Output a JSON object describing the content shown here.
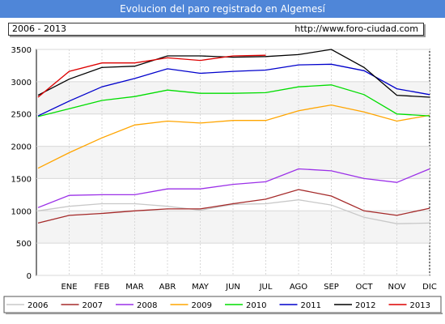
{
  "header": {
    "title": "Evolucion del paro registrado en Algemesí",
    "period": "2006 - 2013",
    "url": "http://www.foro-ciudad.com"
  },
  "chart_data": {
    "type": "line",
    "title": "Evolucion del paro registrado en Algemesí",
    "categories": [
      "",
      "ENE",
      "FEB",
      "MAR",
      "ABR",
      "MAY",
      "JUN",
      "JUL",
      "AGO",
      "SEP",
      "OCT",
      "NOV",
      "DIC"
    ],
    "ylim": [
      0,
      3500
    ],
    "yticks": [
      0,
      500,
      1000,
      1500,
      2000,
      2500,
      3000,
      3500
    ],
    "grid": true,
    "legend_position": "bottom",
    "series": [
      {
        "name": "2006",
        "color": "#c8c8c8",
        "values": [
          1000,
          1070,
          1110,
          1110,
          1070,
          1010,
          1100,
          1110,
          1170,
          1090,
          900,
          800,
          810
        ]
      },
      {
        "name": "2007",
        "color": "#a52a2a",
        "values": [
          810,
          930,
          960,
          1000,
          1030,
          1030,
          1110,
          1180,
          1330,
          1230,
          1000,
          930,
          1040
        ]
      },
      {
        "name": "2008",
        "color": "#9b30e8",
        "values": [
          1050,
          1240,
          1250,
          1250,
          1340,
          1340,
          1410,
          1450,
          1650,
          1620,
          1500,
          1440,
          1650
        ]
      },
      {
        "name": "2009",
        "color": "#ffa500",
        "values": [
          1660,
          1900,
          2130,
          2330,
          2390,
          2360,
          2400,
          2400,
          2550,
          2640,
          2530,
          2390,
          2480
        ]
      },
      {
        "name": "2010",
        "color": "#00dd00",
        "values": [
          2460,
          2580,
          2710,
          2770,
          2870,
          2820,
          2820,
          2830,
          2920,
          2950,
          2800,
          2500,
          2470
        ]
      },
      {
        "name": "2011",
        "color": "#0000cc",
        "values": [
          2470,
          2700,
          2920,
          3050,
          3200,
          3130,
          3160,
          3180,
          3260,
          3270,
          3170,
          2890,
          2800
        ]
      },
      {
        "name": "2012",
        "color": "#000000",
        "values": [
          2790,
          3040,
          3220,
          3240,
          3400,
          3400,
          3380,
          3390,
          3420,
          3500,
          3220,
          2790,
          2760
        ]
      },
      {
        "name": "2013",
        "color": "#dd0000",
        "values": [
          2760,
          3160,
          3290,
          3290,
          3370,
          3330,
          3400,
          3410,
          null,
          null,
          null,
          null,
          null
        ]
      }
    ]
  }
}
